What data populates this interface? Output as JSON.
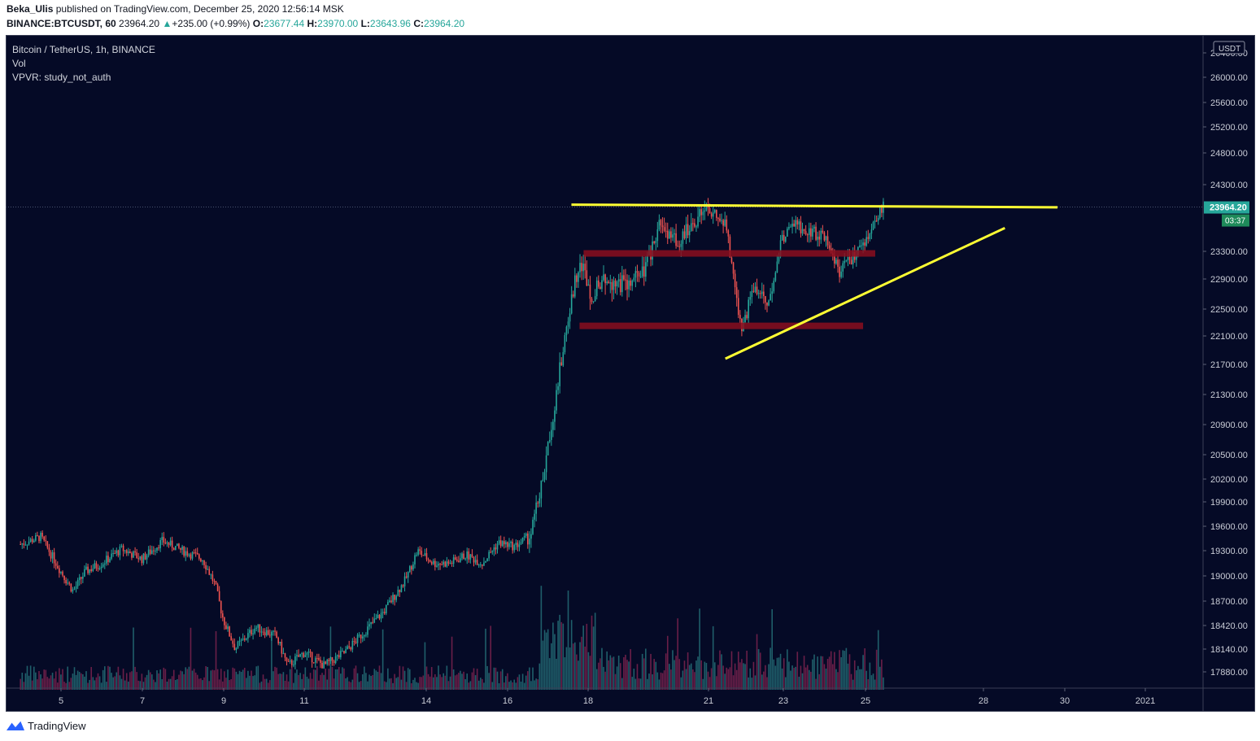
{
  "header": {
    "author": "Beka_Ulis",
    "published_text": "published on TradingView.com, December 25, 2020 12:56:14 MSK",
    "symbol": "BINANCE:BTCUSDT, 60",
    "last": "23964.20",
    "change": "+235.00 (+0.99%)",
    "o_label": "O:",
    "o_value": "23677.44",
    "h_label": "H:",
    "h_value": "23970.00",
    "l_label": "L:",
    "l_value": "23643.96",
    "c_label": "C:",
    "c_value": "23964.20"
  },
  "legend": {
    "title": "Bitcoin / TetherUS, 1h, BINANCE",
    "vol": "Vol",
    "vpvr": "VPVR: study_not_auth"
  },
  "footer": {
    "brand": "TradingView"
  },
  "colors": {
    "background": "#050a26",
    "up": "#26a69a",
    "down": "#ef5350",
    "annotation_line": "#ffff33",
    "zone": "#8b0e1e",
    "price_label": "#26a69a"
  },
  "chart_data": {
    "type": "candlestick",
    "title": "Bitcoin / TetherUS, 1h, BINANCE",
    "currency": "USDT",
    "last_price": 23964.2,
    "last_price_label": "23964.20",
    "countdown": "03:37",
    "yticks": [
      "26400.00",
      "26000.00",
      "25600.00",
      "25200.00",
      "24800.00",
      "24300.00",
      "23300.00",
      "22900.00",
      "22500.00",
      "22100.00",
      "21700.00",
      "21300.00",
      "20900.00",
      "20500.00",
      "20200.00",
      "19900.00",
      "19600.00",
      "19300.00",
      "19000.00",
      "18700.00",
      "18420.00",
      "18140.00",
      "17880.00"
    ],
    "xticks": [
      "5",
      "7",
      "9",
      "11",
      "14",
      "16",
      "18",
      "21",
      "23",
      "25",
      "28",
      "30",
      "2021"
    ],
    "path_keypoints": [
      {
        "day": 4.0,
        "price": 19380
      },
      {
        "day": 4.5,
        "price": 19470
      },
      {
        "day": 5.0,
        "price": 19050
      },
      {
        "day": 5.3,
        "price": 18820
      },
      {
        "day": 5.6,
        "price": 19050
      },
      {
        "day": 6.0,
        "price": 19150
      },
      {
        "day": 6.5,
        "price": 19320
      },
      {
        "day": 7.0,
        "price": 19200
      },
      {
        "day": 7.5,
        "price": 19420
      },
      {
        "day": 8.0,
        "price": 19300
      },
      {
        "day": 8.5,
        "price": 19200
      },
      {
        "day": 8.8,
        "price": 18900
      },
      {
        "day": 9.0,
        "price": 18500
      },
      {
        "day": 9.3,
        "price": 18150
      },
      {
        "day": 9.8,
        "price": 18400
      },
      {
        "day": 10.3,
        "price": 18300
      },
      {
        "day": 10.6,
        "price": 17950
      },
      {
        "day": 11.0,
        "price": 18100
      },
      {
        "day": 11.5,
        "price": 17950
      },
      {
        "day": 12.0,
        "price": 18100
      },
      {
        "day": 12.5,
        "price": 18350
      },
      {
        "day": 13.0,
        "price": 18600
      },
      {
        "day": 13.5,
        "price": 18950
      },
      {
        "day": 13.8,
        "price": 19300
      },
      {
        "day": 14.2,
        "price": 19150
      },
      {
        "day": 14.6,
        "price": 19150
      },
      {
        "day": 15.0,
        "price": 19250
      },
      {
        "day": 15.4,
        "price": 19150
      },
      {
        "day": 15.8,
        "price": 19400
      },
      {
        "day": 16.2,
        "price": 19350
      },
      {
        "day": 16.6,
        "price": 19500
      },
      {
        "day": 16.9,
        "price": 20200
      },
      {
        "day": 17.2,
        "price": 21200
      },
      {
        "day": 17.5,
        "price": 22300
      },
      {
        "day": 17.8,
        "price": 23200
      },
      {
        "day": 18.1,
        "price": 22700
      },
      {
        "day": 18.5,
        "price": 22900
      },
      {
        "day": 19.0,
        "price": 22800
      },
      {
        "day": 19.4,
        "price": 23000
      },
      {
        "day": 19.8,
        "price": 23700
      },
      {
        "day": 20.2,
        "price": 23400
      },
      {
        "day": 20.6,
        "price": 23750
      },
      {
        "day": 21.0,
        "price": 23900
      },
      {
        "day": 21.4,
        "price": 23700
      },
      {
        "day": 21.8,
        "price": 22200
      },
      {
        "day": 22.1,
        "price": 22800
      },
      {
        "day": 22.5,
        "price": 22600
      },
      {
        "day": 22.8,
        "price": 23500
      },
      {
        "day": 23.1,
        "price": 23700
      },
      {
        "day": 23.5,
        "price": 23600
      },
      {
        "day": 23.9,
        "price": 23500
      },
      {
        "day": 24.2,
        "price": 23000
      },
      {
        "day": 24.6,
        "price": 23250
      },
      {
        "day": 25.0,
        "price": 23600
      },
      {
        "day": 25.3,
        "price": 23964
      }
    ],
    "annotations": {
      "resistance_line": {
        "from": {
          "day": 17.6,
          "price": 24000
        },
        "to": {
          "day": 29.6,
          "price": 23960
        }
      },
      "rising_trendline": {
        "from": {
          "day": 21.4,
          "price": 21780
        },
        "to": {
          "day": 28.3,
          "price": 23650
        }
      },
      "zone_upper": {
        "day_start": 17.9,
        "day_end": 25.1,
        "price": 23270
      },
      "zone_lower": {
        "day_start": 17.8,
        "day_end": 24.8,
        "price": 22250
      }
    }
  }
}
